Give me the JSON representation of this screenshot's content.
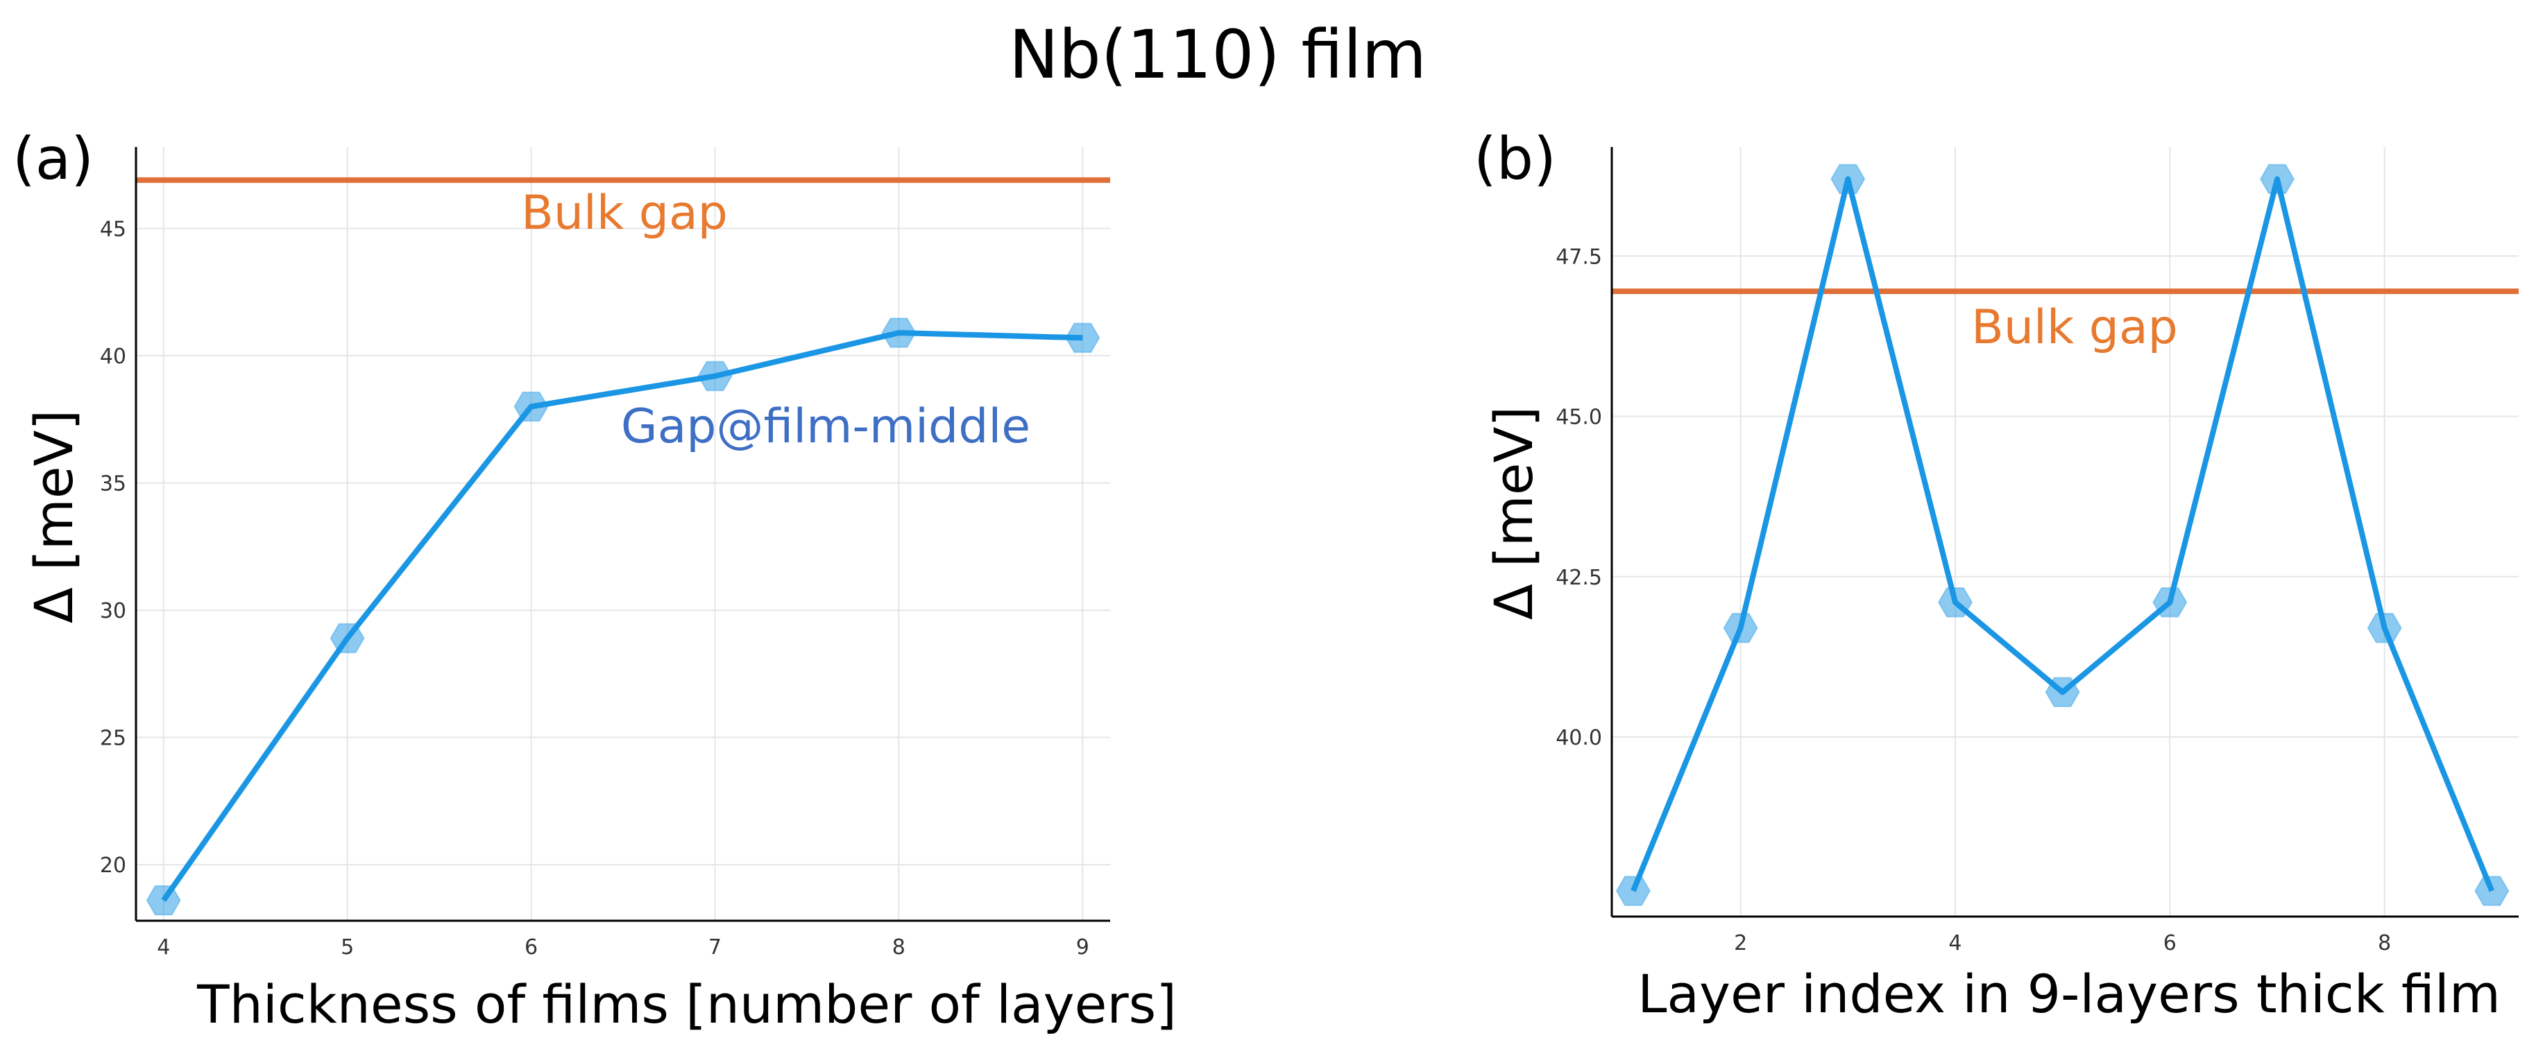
{
  "figure": {
    "title": "Nb(110) film"
  },
  "colors": {
    "series": "#1a96e4",
    "bulk": "#e0703a",
    "annotation_middle": "#3e6fc4",
    "bulk_text": "#e87a30"
  },
  "chart_data": [
    {
      "type": "line",
      "panel_label": "(a)",
      "xlabel": "Thickness of films [number of layers]",
      "ylabel": "Δ [meV]",
      "x": [
        4,
        5,
        6,
        7,
        8,
        9
      ],
      "y": [
        18.6,
        28.9,
        38.0,
        39.2,
        40.9,
        40.7
      ],
      "xlim": [
        3.85,
        9.15
      ],
      "ylim": [
        17.8,
        48.2
      ],
      "xticks": [
        4,
        5,
        6,
        7,
        8,
        9
      ],
      "xtick_labels": [
        "4",
        "5",
        "6",
        "7",
        "8",
        "9"
      ],
      "yticks": [
        20,
        25,
        30,
        35,
        40,
        45
      ],
      "ytick_labels": [
        "20",
        "25",
        "30",
        "35",
        "40",
        "45"
      ],
      "bulk_gap": 46.9,
      "bulk_label": "Bulk gap",
      "series_label": "Gap@film-middle",
      "grid": true,
      "legend": "none"
    },
    {
      "type": "line",
      "panel_label": "(b)",
      "xlabel": "Layer index in 9-layers thick film",
      "ylabel": "Δ [meV]",
      "x": [
        1,
        2,
        3,
        4,
        5,
        6,
        7,
        8,
        9
      ],
      "y": [
        37.6,
        41.7,
        48.7,
        42.1,
        40.7,
        42.1,
        48.7,
        41.7,
        37.6
      ],
      "xlim": [
        0.8,
        9.25
      ],
      "ylim": [
        37.2,
        49.2
      ],
      "xticks": [
        2,
        4,
        6,
        8
      ],
      "xtick_labels": [
        "2",
        "4",
        "6",
        "8"
      ],
      "yticks": [
        40.0,
        42.5,
        45.0,
        47.5
      ],
      "ytick_labels": [
        "40.0",
        "42.5",
        "45.0",
        "47.5"
      ],
      "bulk_gap": 46.95,
      "bulk_label": "Bulk gap",
      "grid": true,
      "legend": "none"
    }
  ]
}
